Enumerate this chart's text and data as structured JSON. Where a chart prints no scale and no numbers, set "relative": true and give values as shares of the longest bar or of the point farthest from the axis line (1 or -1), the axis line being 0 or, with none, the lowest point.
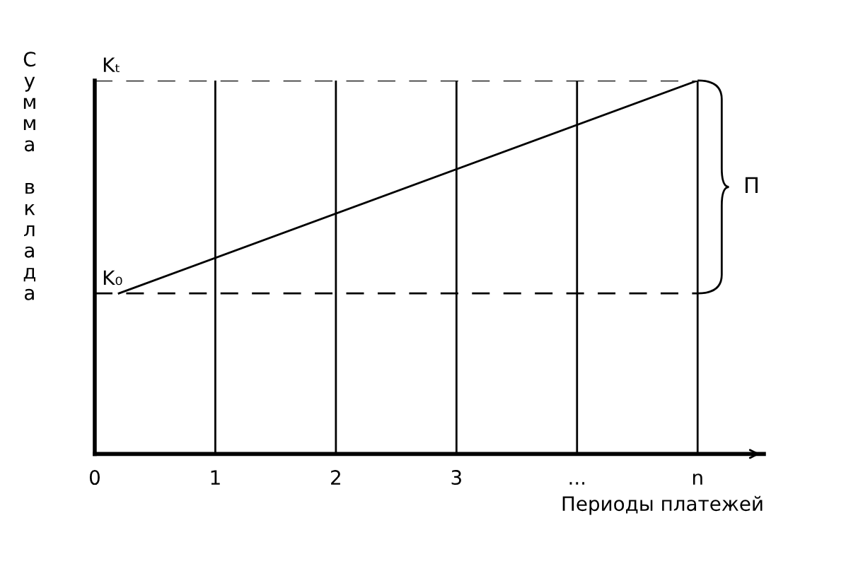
{
  "chart_data": {
    "type": "line",
    "relative": true,
    "xlabel": "Периоды платежей",
    "ylabel": "Сумма вклада",
    "x": [
      0.2,
      5
    ],
    "series": [
      {
        "color": "#000000",
        "values": [
          0.43,
          1
        ]
      }
    ],
    "xlim": [
      0,
      5.55
    ],
    "xticks": [
      0,
      1,
      2,
      3,
      {
        "value": 4,
        "label": "..."
      },
      {
        "value": 5,
        "label": "n"
      }
    ],
    "grid": "x",
    "marker": "none",
    "line_style": "solid",
    "ref_lines": [
      {
        "axis": "y",
        "value": 1,
        "label": "Kₜ",
        "line_style": "dashed",
        "color": "#000000"
      },
      {
        "axis": "y",
        "value": 0.43,
        "label": "K₀",
        "line_style": "dashed",
        "color": "#000000"
      }
    ],
    "annotations": [
      "П"
    ]
  }
}
